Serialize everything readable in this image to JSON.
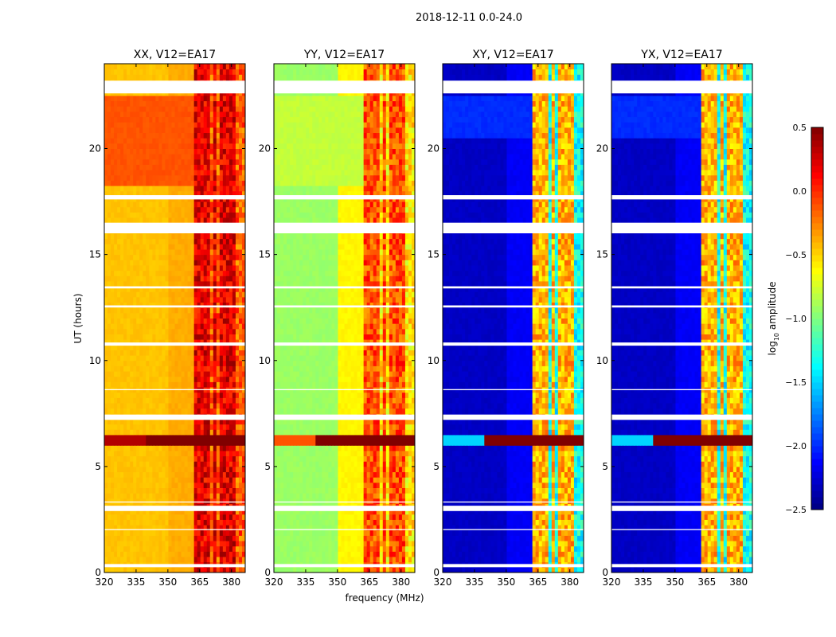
{
  "chart_data": {
    "type": "heatmap",
    "suptitle": "2018-12-11 0.0-24.0",
    "xlabel": "frequency (MHz)",
    "ylabel": "UT (hours)",
    "xlim": [
      320,
      386.5
    ],
    "ylim": [
      0,
      24
    ],
    "xticks": [
      "320",
      "335",
      "350",
      "365",
      "380"
    ],
    "yticks": [
      "0",
      "5",
      "10",
      "15",
      "20"
    ],
    "colorbar": {
      "label_main": "log",
      "label_sub": "10",
      "label_rest": " amplitude",
      "range": [
        -2.5,
        0.5
      ],
      "ticks": [
        "0.5",
        "0.0",
        "−0.5",
        "−1.0",
        "−1.5",
        "−2.0",
        "−2.5"
      ],
      "cmap": "jet"
    },
    "flagged_hours": [
      [
        0.25,
        0.4
      ],
      [
        2.0,
        2.05
      ],
      [
        2.9,
        3.15
      ],
      [
        3.3,
        3.35
      ],
      [
        7.2,
        7.45
      ],
      [
        8.6,
        8.65
      ],
      [
        10.7,
        10.85
      ],
      [
        12.5,
        12.6
      ],
      [
        13.4,
        13.5
      ],
      [
        16.0,
        16.5
      ],
      [
        17.6,
        17.8
      ],
      [
        22.6,
        23.2
      ]
    ],
    "rfi_hours": [
      6.0,
      6.6
    ],
    "bands_mhz": [
      [
        363,
        366.5
      ],
      [
        367,
        370.5
      ],
      [
        371,
        373.5
      ],
      [
        374.5,
        377
      ],
      [
        378,
        381.5
      ]
    ],
    "panels": [
      {
        "title": "XX, V12=EA17",
        "base_left": -0.45,
        "base_mid": -0.38,
        "band": 0.2,
        "band_gap": -0.15,
        "bright_hours": [
          18.2,
          22.5
        ],
        "bright_value": -0.12
      },
      {
        "title": "YY, V12=EA17",
        "base_left": -0.92,
        "base_mid": -0.6,
        "band": -0.1,
        "band_gap": -0.55,
        "bright_hours": [
          18.2,
          22.5
        ],
        "bright_value": -0.8
      },
      {
        "title": "XY, V12=EA17",
        "base_left": -2.3,
        "base_mid": -2.15,
        "band": -0.4,
        "band_gap": -1.35,
        "bright_hours": [
          20.5,
          22.5
        ],
        "bright_value": -2.0
      },
      {
        "title": "YX, V12=EA17",
        "base_left": -2.3,
        "base_mid": -2.15,
        "band": -0.4,
        "band_gap": -1.35,
        "bright_hours": [
          20.5,
          22.5
        ],
        "bright_value": -2.0
      }
    ]
  }
}
